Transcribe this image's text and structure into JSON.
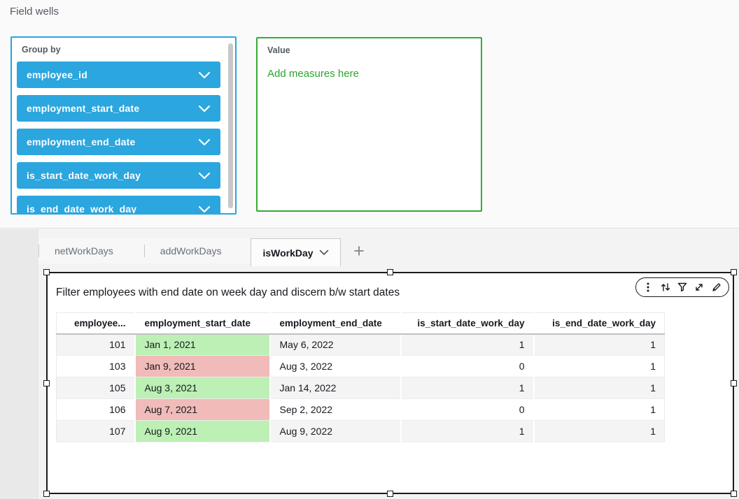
{
  "field_wells": {
    "title": "Field wells",
    "group_by": {
      "label": "Group by",
      "pills": [
        "employee_id",
        "employment_start_date",
        "employment_end_date",
        "is_start_date_work_day",
        "is_end_date_work_day"
      ]
    },
    "value": {
      "label": "Value",
      "empty_text": "Add measures here"
    }
  },
  "sheet_tabs": {
    "tabs": [
      {
        "label": "netWorkDays",
        "active": false
      },
      {
        "label": "addWorkDays",
        "active": false
      },
      {
        "label": "isWorkDay",
        "active": true
      }
    ],
    "add_tab_label": "+"
  },
  "visual": {
    "title": "Filter employees with end date on week day and discern b/w start dates",
    "toolbar_icons": [
      "menu-kebab-icon",
      "sort-icon",
      "filter-icon",
      "maximize-icon",
      "edit-pencil-icon"
    ],
    "table": {
      "columns": [
        {
          "label": "employee...",
          "align": "right"
        },
        {
          "label": "employment_start_date",
          "align": "left"
        },
        {
          "label": "employment_end_date",
          "align": "left"
        },
        {
          "label": "is_start_date_work_day",
          "align": "right"
        },
        {
          "label": "is_end_date_work_day",
          "align": "right"
        }
      ],
      "rows": [
        {
          "employee_id": "101",
          "employment_start_date": "Jan 1, 2021",
          "start_date_highlight": "green",
          "employment_end_date": "May 6, 2022",
          "is_start_date_work_day": "1",
          "is_end_date_work_day": "1"
        },
        {
          "employee_id": "103",
          "employment_start_date": "Jan 9, 2021",
          "start_date_highlight": "red",
          "employment_end_date": "Aug 3, 2022",
          "is_start_date_work_day": "0",
          "is_end_date_work_day": "1"
        },
        {
          "employee_id": "105",
          "employment_start_date": "Aug 3, 2021",
          "start_date_highlight": "green",
          "employment_end_date": "Jan 14, 2022",
          "is_start_date_work_day": "1",
          "is_end_date_work_day": "1"
        },
        {
          "employee_id": "106",
          "employment_start_date": "Aug 7, 2021",
          "start_date_highlight": "red",
          "employment_end_date": "Sep 2, 2022",
          "is_start_date_work_day": "0",
          "is_end_date_work_day": "1"
        },
        {
          "employee_id": "107",
          "employment_start_date": "Aug 9, 2021",
          "start_date_highlight": "green",
          "employment_end_date": "Aug 9, 2022",
          "is_start_date_work_day": "1",
          "is_end_date_work_day": "1"
        }
      ]
    }
  },
  "colors": {
    "pill_blue": "#2BA6DE",
    "group_by_border": "#2BA6DE",
    "value_border": "#35AA35",
    "value_text": "#2BA52B",
    "highlight_green": "#BCF0B4",
    "highlight_red": "#F0BBB9",
    "row_stripe": "#F4F4F5"
  }
}
